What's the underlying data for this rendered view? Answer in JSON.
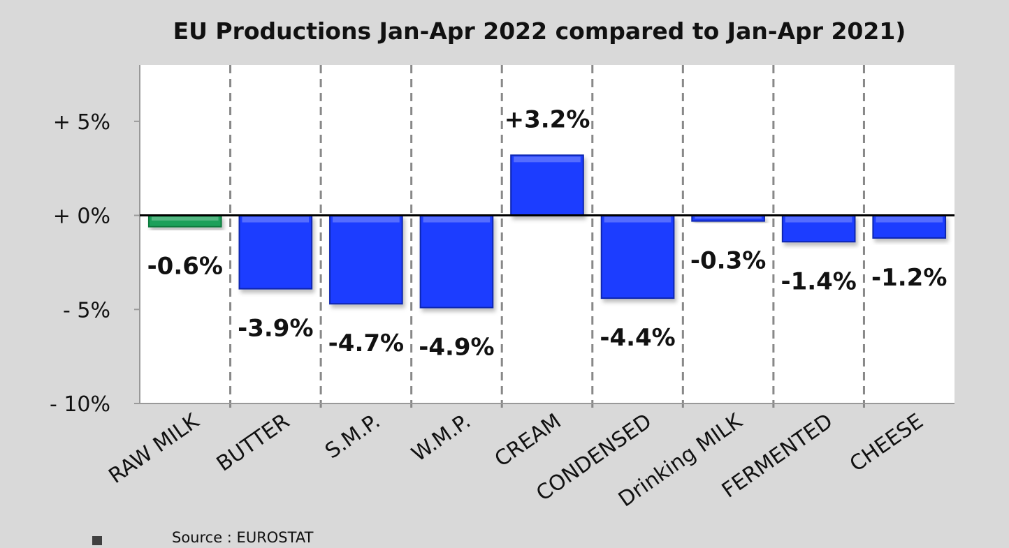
{
  "chart_data": {
    "type": "bar",
    "title": "EU Productions Jan-Apr 2022 compared to Jan-Apr 2021)",
    "categories": [
      "RAW MILK",
      "BUTTER",
      "S.M.P.",
      "W.M.P.",
      "CREAM",
      "CONDENSED",
      "Drinking MILK",
      "FERMENTED",
      "CHEESE"
    ],
    "values": [
      -0.6,
      -3.9,
      -4.7,
      -4.9,
      3.2,
      -4.4,
      -0.3,
      -1.4,
      -1.2
    ],
    "data_labels": [
      "-0.6%",
      "-3.9%",
      "-4.7%",
      "-4.9%",
      "+3.2%",
      "-4.4%",
      "-0.3%",
      "-1.4%",
      "-1.2%"
    ],
    "bar_colors": [
      "#1fa05a",
      "#1a3cff",
      "#1a3cff",
      "#1a3cff",
      "#1a3cff",
      "#1a3cff",
      "#1a3cff",
      "#1a3cff",
      "#1a3cff"
    ],
    "yticks": [
      5,
      0,
      -5,
      -10
    ],
    "ytick_labels": [
      "+ 5%",
      "+ 0%",
      "- 5%",
      "- 10%"
    ],
    "ylim": [
      -10,
      8
    ],
    "xlabel": "",
    "ylabel": "",
    "grid": "vertical dashed separators",
    "legend": "none"
  },
  "source": "Source : EUROSTAT"
}
